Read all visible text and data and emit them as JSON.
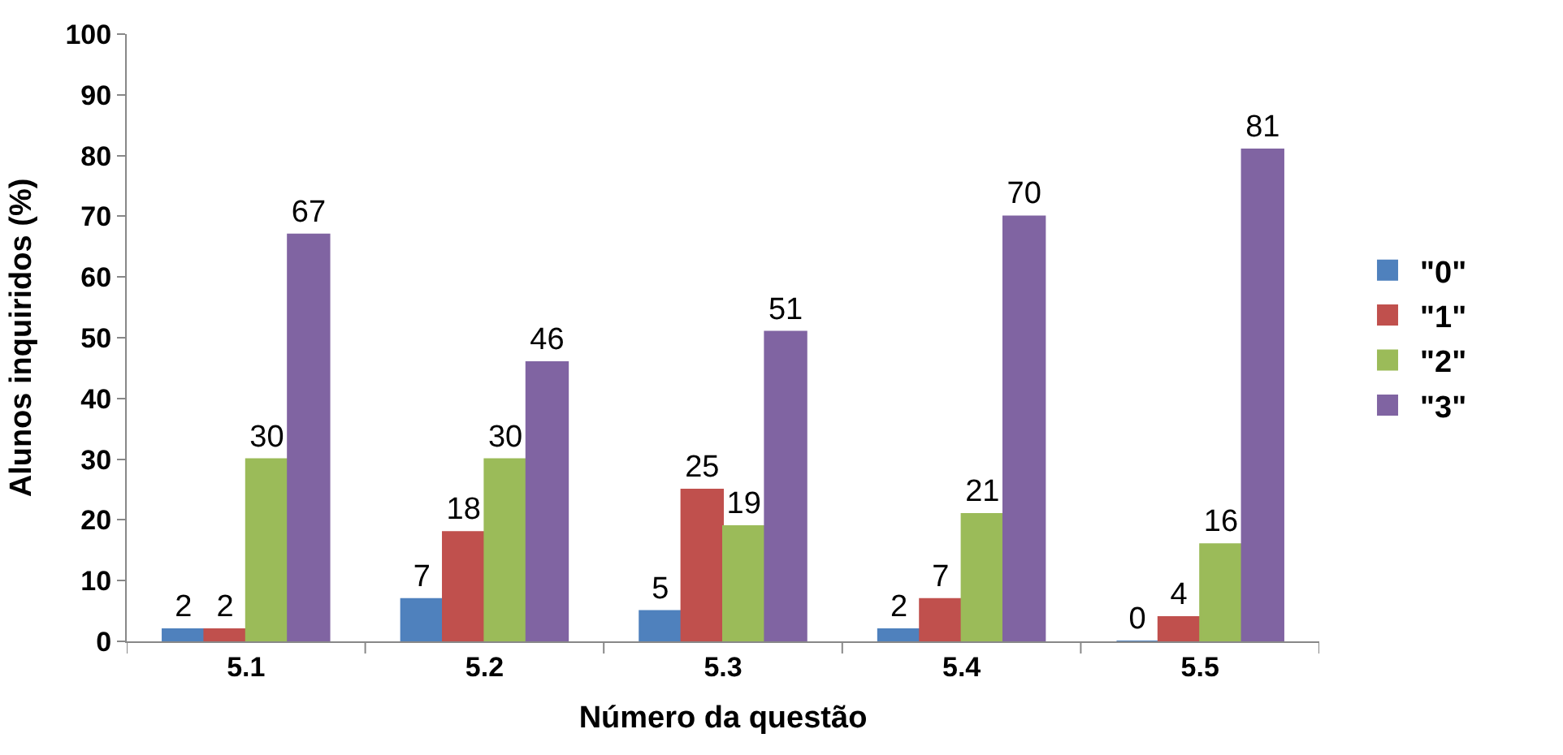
{
  "chart_data": {
    "type": "bar",
    "xlabel": "Número da questão",
    "ylabel": "Alunos inquiridos (%)",
    "categories": [
      "5.1",
      "5.2",
      "5.3",
      "5.4",
      "5.5"
    ],
    "series": [
      {
        "name": "\"0\"",
        "color": "#4f81bd",
        "values": [
          2,
          7,
          5,
          2,
          0
        ]
      },
      {
        "name": "\"1\"",
        "color": "#c0504d",
        "values": [
          2,
          18,
          25,
          7,
          4
        ]
      },
      {
        "name": "\"2\"",
        "color": "#9bbb59",
        "values": [
          30,
          30,
          19,
          21,
          16
        ]
      },
      {
        "name": "\"3\"",
        "color": "#8064a2",
        "values": [
          67,
          46,
          51,
          70,
          81
        ]
      }
    ],
    "ylim": [
      0,
      100
    ],
    "yticks": [
      0,
      10,
      20,
      30,
      40,
      50,
      60,
      70,
      80,
      90,
      100
    ],
    "data_labels": true,
    "legend": "right"
  }
}
